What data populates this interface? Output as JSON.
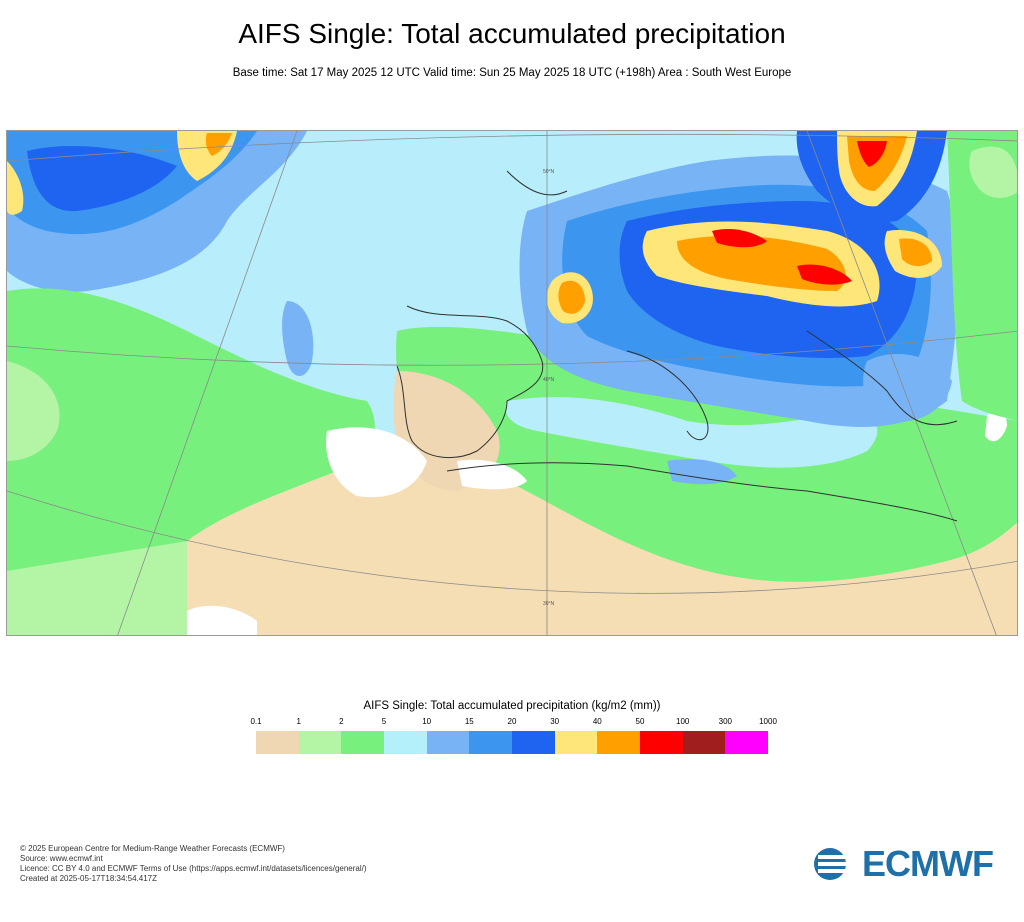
{
  "header": {
    "title": "AIFS Single: Total accumulated precipitation",
    "subtitle": "Base time: Sat 17 May 2025 12 UTC Valid time: Sun 25 May 2025 18 UTC (+198h) Area : South West Europe"
  },
  "map": {
    "lat_labels": [
      "50°N",
      "40°N",
      "30°N"
    ],
    "colors": {
      "background_sea": "#b8eefb",
      "land_dry": "#f5deb3",
      "class_0_1": "#f0d7b4",
      "class_1_2": "#b4f5a5",
      "class_2_5": "#78f07d",
      "class_5_10": "#b4f0fa",
      "class_10_15": "#78b4f5",
      "class_15_20": "#3c96f0",
      "class_20_30": "#1e64f0",
      "class_30_40": "#ffe678",
      "class_40_50": "#ffa000",
      "class_50_100": "#ff0000",
      "class_100_300": "#a01e1e",
      "class_300_1000": "#ff00ff"
    }
  },
  "legend": {
    "title": "AIFS Single: Total accumulated precipitation (kg/m2 (mm))",
    "ticks": [
      "0.1",
      "1",
      "2",
      "5",
      "10",
      "15",
      "20",
      "30",
      "40",
      "50",
      "100",
      "300",
      "1000"
    ],
    "swatches": [
      "#f0d7b4",
      "#b4f5a5",
      "#78f07d",
      "#b4f0fa",
      "#78b4f5",
      "#3c96f0",
      "#1e64f0",
      "#ffe678",
      "#ffa000",
      "#ff0000",
      "#a01e1e",
      "#ff00ff"
    ]
  },
  "footer": {
    "line1": "© 2025 European Centre for Medium-Range Weather Forecasts (ECMWF)",
    "line2": "Source: www.ecmwf.int",
    "line3": "Licence: CC BY 4.0 and ECMWF Terms of Use (https://apps.ecmwf.int/datasets/licences/general/)",
    "line4": "Created at 2025-05-17T18:34:54.417Z"
  },
  "logo": {
    "text": "ECMWF",
    "icon": "ecmwf-logo-icon"
  }
}
